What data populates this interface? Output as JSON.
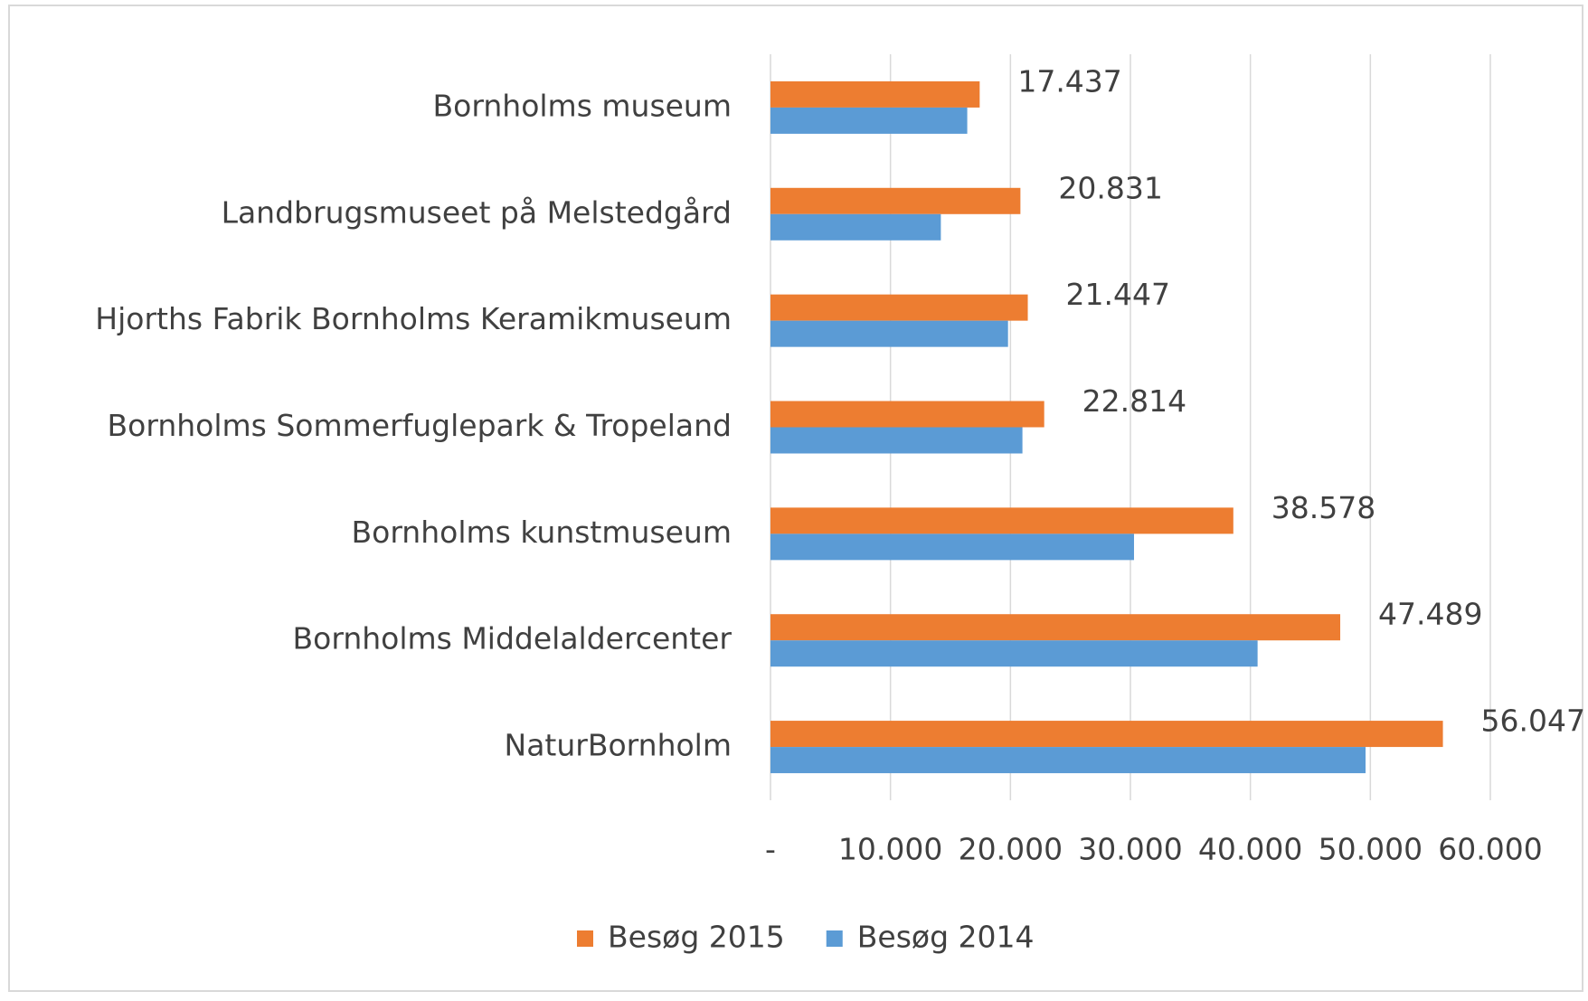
{
  "chart_data": {
    "type": "bar",
    "orientation": "horizontal",
    "categories": [
      "Bornholms museum",
      "Landbrugsmuseet på Melstedgård",
      "Hjorths Fabrik Bornholms Keramikmuseum",
      "Bornholms Sommerfuglepark & Tropeland",
      "Bornholms kunstmuseum",
      "Bornholms Middelaldercenter",
      "NaturBornholm"
    ],
    "series": [
      {
        "name": "Besøg 2015",
        "color": "#ed7d31",
        "values": [
          17437,
          20831,
          21447,
          22814,
          38578,
          47489,
          56047
        ],
        "value_labels": [
          "17.437",
          "20.831",
          "21.447",
          "22.814",
          "38.578",
          "47.489",
          "56.047"
        ]
      },
      {
        "name": "Besøg 2014",
        "color": "#5b9bd5",
        "values": [
          16400,
          14200,
          19800,
          21000,
          30300,
          40600,
          49600
        ]
      }
    ],
    "xlim": [
      0,
      60000
    ],
    "xticks": [
      {
        "value": 0,
        "label": "-"
      },
      {
        "value": 10000,
        "label": "10.000"
      },
      {
        "value": 20000,
        "label": "20.000"
      },
      {
        "value": 30000,
        "label": "30.000"
      },
      {
        "value": 40000,
        "label": "40.000"
      },
      {
        "value": 50000,
        "label": "50.000"
      },
      {
        "value": 60000,
        "label": "60.000"
      }
    ],
    "grid": true,
    "legend": "bottom"
  }
}
